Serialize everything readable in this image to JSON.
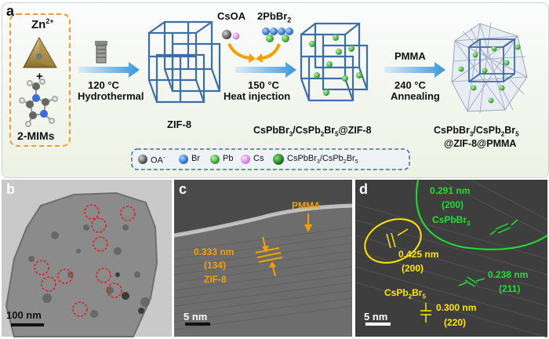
{
  "panel_a": {
    "letter": "a",
    "zn": "Zn",
    "zn_sup": "2+",
    "plus": "+",
    "mims": "2-MIMs",
    "step1_temp": "120 °C",
    "step1_name": "Hydrothermal",
    "zif8": "ZIF-8",
    "csoa": "CsOA",
    "pbbr_pre": "2PbBr",
    "pbbr_sub": "2",
    "step2_temp": "150 °C",
    "step2_name": "Heat injection",
    "intermediate_1": "CsPbBr",
    "intermediate_2": "3",
    "intermediate_3": "/CsPb",
    "intermediate_4": "2",
    "intermediate_5": "Br",
    "intermediate_6": "5",
    "intermediate_7": "@ZIF-8",
    "pmma": "PMMA",
    "step3_temp": "240 °C",
    "step3_name": "Annealing",
    "final_l1_1": "CsPbBr",
    "final_l1_2": "3",
    "final_l1_3": "/CsPb",
    "final_l1_4": "2",
    "final_l1_5": "Br",
    "final_l1_6": "5",
    "final_l2": "@ZIF-8@PMMA"
  },
  "legend": {
    "oa": "OA",
    "oa_sup": "-",
    "br": "Br",
    "pb": "Pb",
    "cs": "Cs",
    "nc_1": "CsPbBr",
    "nc_2": "3",
    "nc_3": "/CsPb",
    "nc_4": "2",
    "nc_5": "Br",
    "nc_6": "5"
  },
  "panel_b": {
    "letter": "b",
    "scale": "100 nm"
  },
  "panel_c": {
    "letter": "c",
    "scale": "5 nm",
    "pmma": "PMMA",
    "d": "0.333 nm",
    "hkl": "(134)",
    "phase": "ZIF-8"
  },
  "panel_d": {
    "letter": "d",
    "scale": "5 nm",
    "d1": "0.291 nm",
    "hkl1": "(200)",
    "phase1_pre": "CsPbBr",
    "phase1_sub": "3",
    "d2": "0.425 nm",
    "hkl2": "(200)",
    "d3": "0.238 nm",
    "hkl3": "(211)",
    "phase2_pre": "CsPb",
    "phase2_s1": "2",
    "phase2_mid": "Br",
    "phase2_s2": "5",
    "d4": "0.300 nm",
    "hkl4": "(220)"
  },
  "colors": {
    "arrow_blue": "#4aa3de",
    "orange": "#f5a000",
    "green_label": "#22dd33",
    "yellow_label": "#ffe600",
    "red_circle": "#e02020",
    "frame_blue": "#3d6ea8"
  }
}
